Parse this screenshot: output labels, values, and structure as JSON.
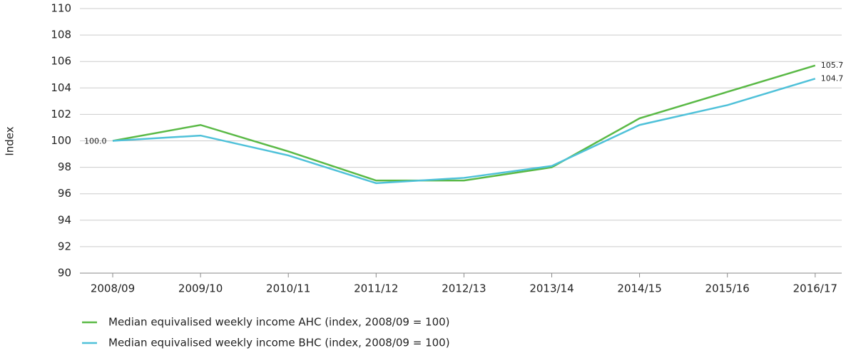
{
  "chart_data": {
    "type": "line",
    "y_label": "Index",
    "categories": [
      "2008/09",
      "2009/10",
      "2010/11",
      "2011/12",
      "2012/13",
      "2013/14",
      "2014/15",
      "2015/16",
      "2016/17"
    ],
    "series": [
      {
        "name": "Median equivalised weekly income AHC (index, 2008/09 = 100)",
        "color": "#5ab946",
        "values": [
          100.0,
          101.2,
          99.2,
          97.0,
          97.0,
          98.0,
          101.7,
          103.7,
          105.7
        ],
        "value_labels": [
          "100.0",
          null,
          null,
          null,
          null,
          null,
          null,
          null,
          "105.7"
        ]
      },
      {
        "name": "Median equivalised weekly income BHC (index, 2008/09 = 100)",
        "color": "#4fc1d9",
        "values": [
          100.0,
          100.4,
          98.9,
          96.8,
          97.2,
          98.1,
          101.2,
          102.7,
          104.7
        ],
        "value_labels": [
          null,
          null,
          null,
          null,
          null,
          null,
          null,
          null,
          "104.7"
        ]
      }
    ],
    "ylim": [
      90,
      110
    ],
    "yticks": [
      90,
      92,
      94,
      96,
      98,
      100,
      102,
      104,
      106,
      108,
      110
    ],
    "grid": true
  }
}
